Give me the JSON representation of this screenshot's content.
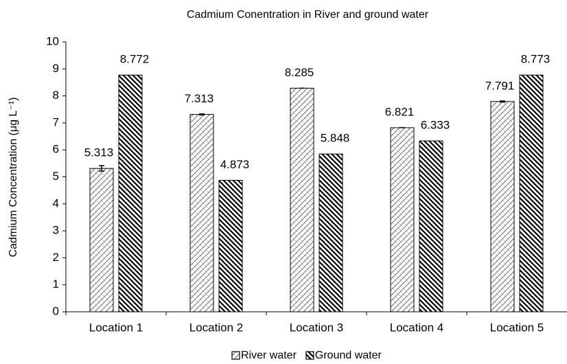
{
  "chart_data": {
    "type": "bar",
    "title": "Cadmium Conentration in River and ground water",
    "y_label": "Cadmium Concentration (μg L⁻¹)",
    "categories": [
      "Location 1",
      "Location 2",
      "Location 3",
      "Location 4",
      "Location 5"
    ],
    "series": [
      {
        "name": "River water",
        "color": "#000000",
        "values": [
          5.313,
          7.313,
          8.285,
          6.821,
          7.791
        ],
        "errors": [
          0.1,
          0.02,
          0,
          0,
          0.02
        ]
      },
      {
        "name": "Ground water",
        "color": "#000000",
        "values": [
          8.772,
          4.873,
          5.848,
          6.333,
          8.773
        ]
      }
    ],
    "ylim": [
      0,
      10
    ],
    "yticks": [
      0,
      1,
      2,
      3,
      4,
      5,
      6,
      7,
      8,
      9,
      10
    ],
    "grid": false,
    "legend": "bottom"
  }
}
